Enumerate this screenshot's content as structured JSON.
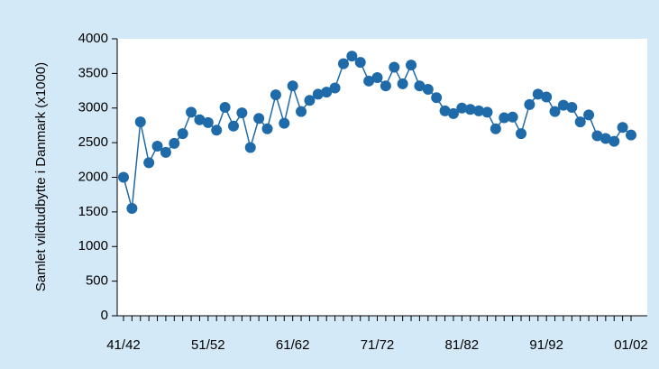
{
  "chart_data": {
    "type": "line",
    "y_label": "Samlet vildtudbytte i Danmark (x1000)",
    "categories": [
      "41/42",
      null,
      null,
      null,
      null,
      null,
      null,
      null,
      null,
      null,
      "51/52",
      null,
      null,
      null,
      null,
      null,
      null,
      null,
      null,
      null,
      "61/62",
      null,
      null,
      null,
      null,
      null,
      null,
      null,
      null,
      null,
      "71/72",
      null,
      null,
      null,
      null,
      null,
      null,
      null,
      null,
      null,
      "81/82",
      null,
      null,
      null,
      null,
      null,
      null,
      null,
      null,
      null,
      "91/92",
      null,
      null,
      null,
      null,
      null,
      null,
      null,
      null,
      null,
      "01/02"
    ],
    "series": [
      {
        "name": "Samlet vildtudbytte",
        "color": "#1f6aa8",
        "values": [
          2000,
          1550,
          2800,
          2210,
          2450,
          2360,
          2490,
          2630,
          2940,
          2830,
          2790,
          2680,
          3010,
          2740,
          2930,
          2430,
          2850,
          2700,
          3190,
          2780,
          3320,
          2950,
          3110,
          3200,
          3230,
          3290,
          3640,
          3750,
          3660,
          3390,
          3440,
          3320,
          3590,
          3350,
          3620,
          3320,
          3270,
          3150,
          2960,
          2920,
          3000,
          2980,
          2960,
          2940,
          2700,
          2860,
          2870,
          2630,
          3050,
          3200,
          3160,
          2950,
          3040,
          3010,
          2800,
          2900,
          2600,
          2560,
          2520,
          2720,
          2610
        ]
      }
    ],
    "ylim": [
      0,
      4000
    ],
    "yticks": [
      0,
      500,
      1000,
      1500,
      2000,
      2500,
      3000,
      3500,
      4000
    ]
  }
}
